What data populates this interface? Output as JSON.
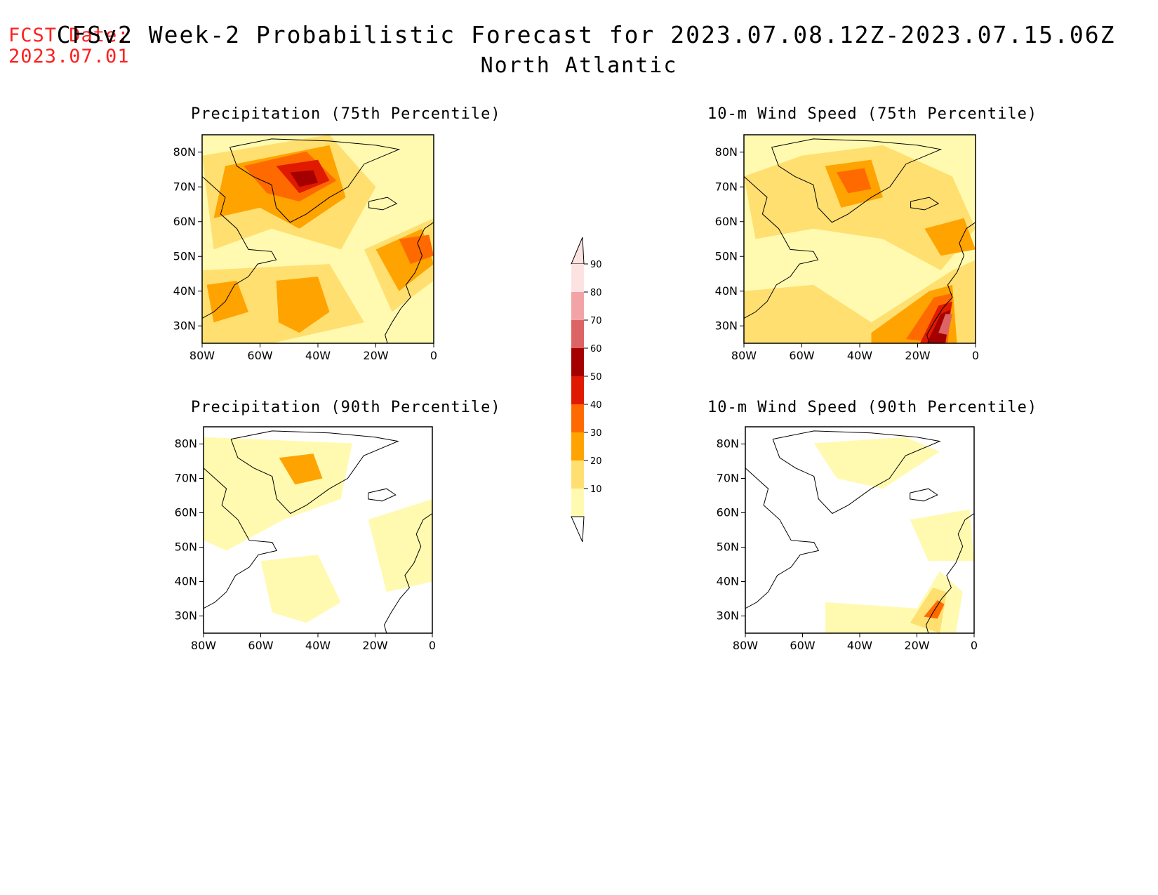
{
  "header": {
    "fcst_label": "FCST Date:",
    "fcst_date": "2023.07.01",
    "title": "CFSv2 Week-2 Probabilistic Forecast for 2023.07.08.12Z-2023.07.15.06Z",
    "subtitle": "North Atlantic"
  },
  "panels": [
    {
      "title": "Precipitation (75th Percentile)",
      "level": 3
    },
    {
      "title": "10-m Wind Speed (75th Percentile)",
      "level": 2
    },
    {
      "title": "Precipitation (90th Percentile)",
      "level": 1
    },
    {
      "title": "10-m Wind Speed (90th Percentile)",
      "level": 0
    }
  ],
  "axes": {
    "lat_labels": [
      "80N",
      "70N",
      "60N",
      "50N",
      "40N",
      "30N"
    ],
    "lon_labels": [
      "80W",
      "60W",
      "40W",
      "20W",
      "0"
    ]
  },
  "colorbar": {
    "labels": [
      "90",
      "80",
      "70",
      "60",
      "50",
      "40",
      "30",
      "20",
      "10"
    ],
    "colors": [
      "#fde2e2",
      "#f2a3a6",
      "#dc6464",
      "#a50000",
      "#e01a00",
      "#ff6a00",
      "#ffa300",
      "#ffdf70",
      "#fffab0"
    ]
  }
}
